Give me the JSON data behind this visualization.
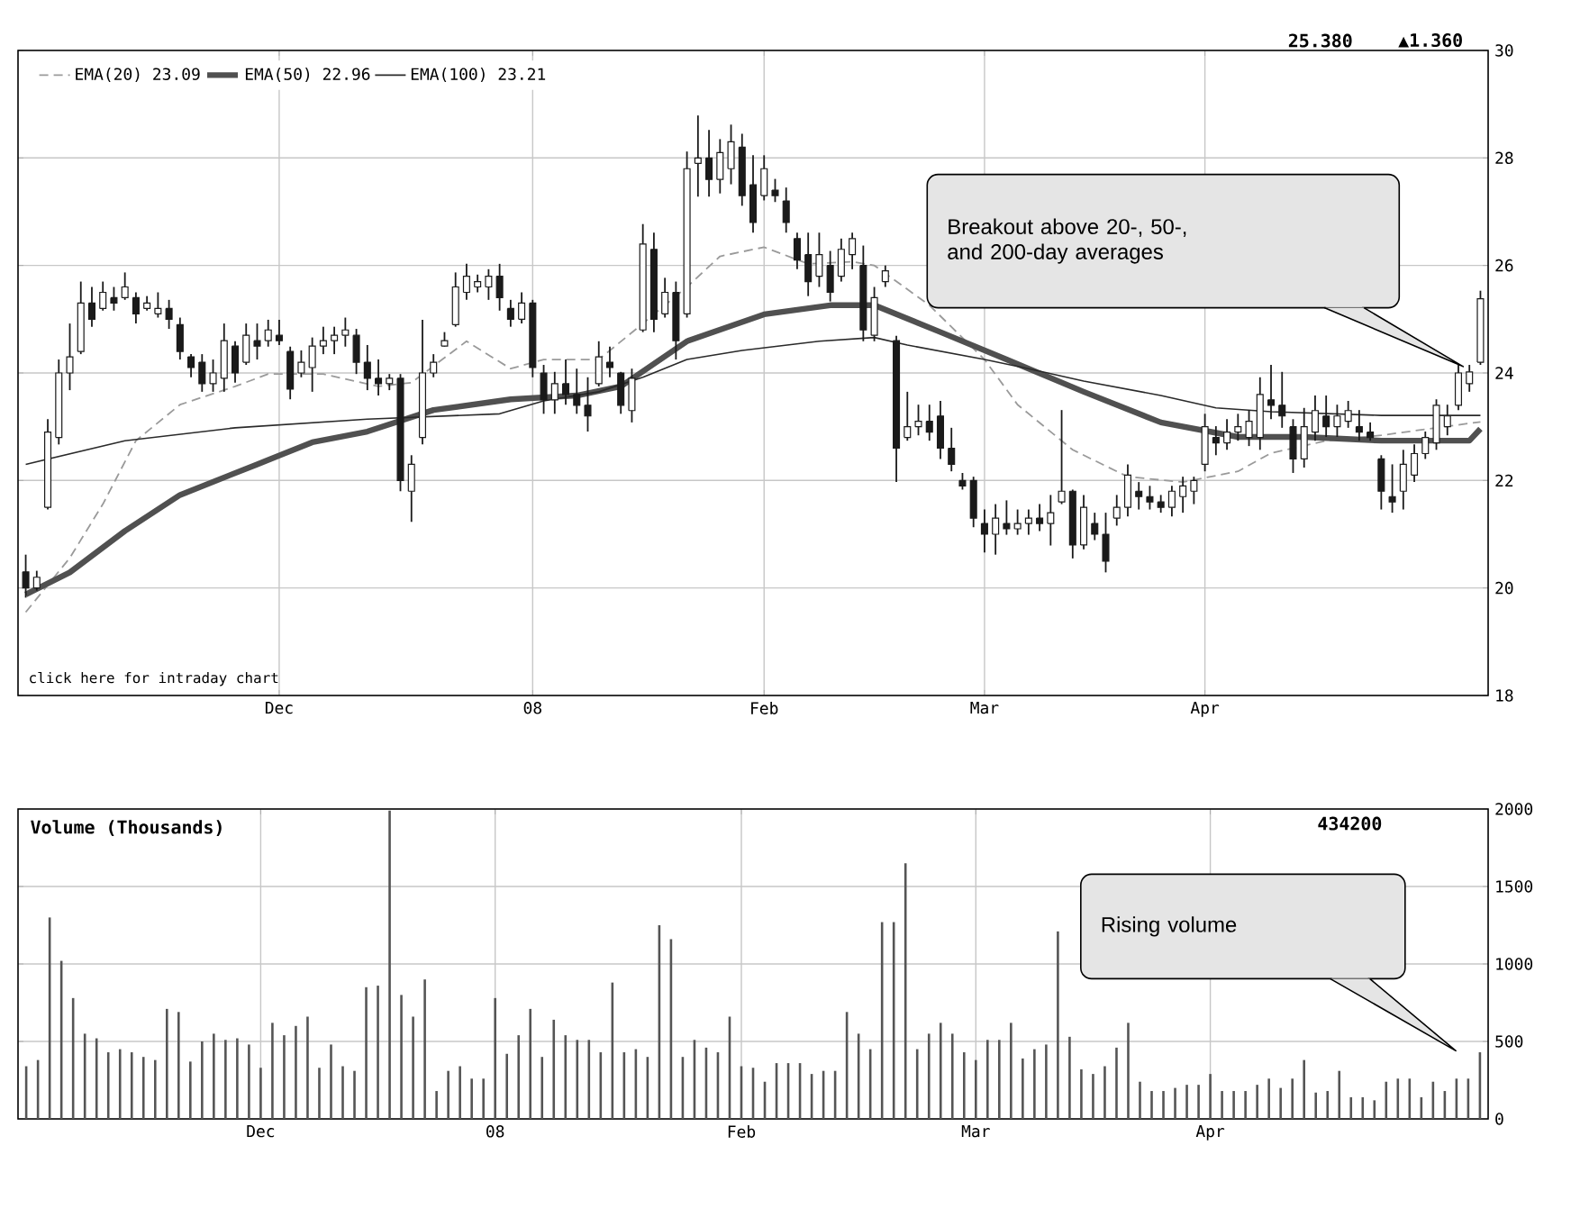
{
  "chart_data": [
    {
      "type": "candlestick",
      "color": "#1a1a1a",
      "grid": true,
      "legend": "top left",
      "ylim": [
        18,
        30
      ],
      "yticks": [
        18,
        20,
        22,
        24,
        26,
        28,
        30
      ],
      "categories": [
        null,
        null,
        null,
        null,
        null,
        null,
        null,
        null,
        null,
        null,
        null,
        null,
        null,
        null,
        null,
        null,
        null,
        null,
        null,
        null,
        null,
        null,
        null,
        "Dec",
        null,
        null,
        null,
        null,
        null,
        null,
        null,
        null,
        null,
        null,
        null,
        null,
        null,
        null,
        null,
        null,
        null,
        null,
        null,
        null,
        null,
        null,
        "08",
        null,
        null,
        null,
        null,
        null,
        null,
        null,
        null,
        null,
        null,
        null,
        null,
        null,
        null,
        null,
        null,
        null,
        null,
        null,
        null,
        "Feb",
        null,
        null,
        null,
        null,
        null,
        null,
        null,
        null,
        null,
        null,
        null,
        null,
        null,
        null,
        null,
        null,
        null,
        null,
        null,
        "Mar",
        null,
        null,
        null,
        null,
        null,
        null,
        null,
        null,
        null,
        null,
        null,
        null,
        null,
        null,
        null,
        null,
        null,
        null,
        null,
        "Apr",
        null,
        null,
        null,
        null,
        null,
        null,
        null,
        null,
        null,
        null,
        null,
        null,
        null,
        null,
        null,
        null,
        null,
        null,
        null,
        null,
        null,
        null,
        null,
        null,
        null
      ],
      "ohlc": [
        [
          20.3,
          20.62,
          19.82,
          20.0
        ],
        [
          20.0,
          20.32,
          19.95,
          20.2
        ],
        [
          21.5,
          23.14,
          21.46,
          22.9
        ],
        [
          22.8,
          24.25,
          22.67,
          24.0
        ],
        [
          24.0,
          24.92,
          23.68,
          24.3
        ],
        [
          24.4,
          25.7,
          24.35,
          25.3
        ],
        [
          25.3,
          25.6,
          24.86,
          25.0
        ],
        [
          25.2,
          25.7,
          25.16,
          25.5
        ],
        [
          25.4,
          25.6,
          25.16,
          25.3
        ],
        [
          25.4,
          25.87,
          25.36,
          25.6
        ],
        [
          25.4,
          25.5,
          24.92,
          25.1
        ],
        [
          25.2,
          25.43,
          25.16,
          25.3
        ],
        [
          25.1,
          25.5,
          25.03,
          25.2
        ],
        [
          25.2,
          25.36,
          24.82,
          25.0
        ],
        [
          24.9,
          25.03,
          24.25,
          24.4
        ],
        [
          24.3,
          24.35,
          23.92,
          24.1
        ],
        [
          24.2,
          24.35,
          23.65,
          23.8
        ],
        [
          23.8,
          24.25,
          23.65,
          24.0
        ],
        [
          23.9,
          24.92,
          23.65,
          24.6
        ],
        [
          24.5,
          24.59,
          23.82,
          24.0
        ],
        [
          24.2,
          24.92,
          24.15,
          24.7
        ],
        [
          24.6,
          24.92,
          24.25,
          24.5
        ],
        [
          24.6,
          24.99,
          24.49,
          24.8
        ],
        [
          24.7,
          24.99,
          24.52,
          24.6
        ],
        [
          24.4,
          24.49,
          23.51,
          23.7
        ],
        [
          24.0,
          24.42,
          23.92,
          24.2
        ],
        [
          24.1,
          24.66,
          23.65,
          24.5
        ],
        [
          24.5,
          24.86,
          24.35,
          24.6
        ],
        [
          24.6,
          24.86,
          24.35,
          24.7
        ],
        [
          24.7,
          25.03,
          24.49,
          24.8
        ],
        [
          24.7,
          24.82,
          23.98,
          24.2
        ],
        [
          24.2,
          24.52,
          23.68,
          23.9
        ],
        [
          23.9,
          24.25,
          23.58,
          23.8
        ],
        [
          23.8,
          23.98,
          23.68,
          23.9
        ],
        [
          23.9,
          23.98,
          21.8,
          22.0
        ],
        [
          21.8,
          22.47,
          21.23,
          22.3
        ],
        [
          22.8,
          24.99,
          22.67,
          24.0
        ],
        [
          24.0,
          24.35,
          23.92,
          24.2
        ],
        [
          24.5,
          24.76,
          24.49,
          24.6
        ],
        [
          24.9,
          25.87,
          24.86,
          25.6
        ],
        [
          25.5,
          26.03,
          25.36,
          25.8
        ],
        [
          25.6,
          25.83,
          25.5,
          25.7
        ],
        [
          25.6,
          25.93,
          25.36,
          25.8
        ],
        [
          25.8,
          26.03,
          25.16,
          25.4
        ],
        [
          25.2,
          25.36,
          24.86,
          25.0
        ],
        [
          25.0,
          25.5,
          24.92,
          25.3
        ],
        [
          25.3,
          25.36,
          23.92,
          24.1
        ],
        [
          24.0,
          24.15,
          23.24,
          23.5
        ],
        [
          23.5,
          24.02,
          23.24,
          23.8
        ],
        [
          23.8,
          24.25,
          23.41,
          23.6
        ],
        [
          23.6,
          24.08,
          23.24,
          23.4
        ],
        [
          23.4,
          23.92,
          22.91,
          23.2
        ],
        [
          23.8,
          24.59,
          23.75,
          24.3
        ],
        [
          24.2,
          24.49,
          23.92,
          24.1
        ],
        [
          24.0,
          24.02,
          23.24,
          23.4
        ],
        [
          23.3,
          24.08,
          23.08,
          23.9
        ],
        [
          24.8,
          26.77,
          24.76,
          26.4
        ],
        [
          26.3,
          26.61,
          24.76,
          25.0
        ],
        [
          25.1,
          25.77,
          25.03,
          25.5
        ],
        [
          25.5,
          25.7,
          24.25,
          24.6
        ],
        [
          25.1,
          28.12,
          25.03,
          27.8
        ],
        [
          27.9,
          28.79,
          27.28,
          28.0
        ],
        [
          28.0,
          28.52,
          27.28,
          27.6
        ],
        [
          27.6,
          28.35,
          27.34,
          28.1
        ],
        [
          27.8,
          28.62,
          27.51,
          28.3
        ],
        [
          28.2,
          28.45,
          27.11,
          27.3
        ],
        [
          27.5,
          28.05,
          26.61,
          26.8
        ],
        [
          27.3,
          28.05,
          27.21,
          27.8
        ],
        [
          27.4,
          27.61,
          27.18,
          27.3
        ],
        [
          27.2,
          27.45,
          26.61,
          26.8
        ],
        [
          26.5,
          26.61,
          25.93,
          26.1
        ],
        [
          26.2,
          26.61,
          25.43,
          25.7
        ],
        [
          25.8,
          26.61,
          25.6,
          26.2
        ],
        [
          26.0,
          26.27,
          25.33,
          25.5
        ],
        [
          25.8,
          26.5,
          25.7,
          26.3
        ],
        [
          26.2,
          26.61,
          25.93,
          26.5
        ],
        [
          26.0,
          26.37,
          24.59,
          24.8
        ],
        [
          24.7,
          25.6,
          24.59,
          25.4
        ],
        [
          25.7,
          26.0,
          25.6,
          25.9
        ],
        [
          24.6,
          24.69,
          21.97,
          22.6
        ],
        [
          22.8,
          23.65,
          22.74,
          23.0
        ],
        [
          23.0,
          23.41,
          22.84,
          23.1
        ],
        [
          23.1,
          23.41,
          22.74,
          22.9
        ],
        [
          23.2,
          23.48,
          22.4,
          22.6
        ],
        [
          22.6,
          22.98,
          22.17,
          22.3
        ],
        [
          22.0,
          22.14,
          21.83,
          21.9
        ],
        [
          22.0,
          22.07,
          21.13,
          21.3
        ],
        [
          21.2,
          21.46,
          20.66,
          21.0
        ],
        [
          21.0,
          21.56,
          20.62,
          21.3
        ],
        [
          21.2,
          21.63,
          20.99,
          21.1
        ],
        [
          21.1,
          21.46,
          20.99,
          21.2
        ],
        [
          21.2,
          21.46,
          20.99,
          21.3
        ],
        [
          21.3,
          21.56,
          21.06,
          21.2
        ],
        [
          21.2,
          21.73,
          20.79,
          21.4
        ],
        [
          21.6,
          23.31,
          21.56,
          21.8
        ],
        [
          21.8,
          21.83,
          20.55,
          20.8
        ],
        [
          20.8,
          21.73,
          20.72,
          21.5
        ],
        [
          21.2,
          21.4,
          20.89,
          21.0
        ],
        [
          21.0,
          21.4,
          20.29,
          20.5
        ],
        [
          21.3,
          21.73,
          21.16,
          21.5
        ],
        [
          21.5,
          22.3,
          21.33,
          22.1
        ],
        [
          21.8,
          21.97,
          21.46,
          21.7
        ],
        [
          21.7,
          21.9,
          21.46,
          21.6
        ],
        [
          21.6,
          21.73,
          21.4,
          21.5
        ],
        [
          21.5,
          21.9,
          21.33,
          21.8
        ],
        [
          21.7,
          22.07,
          21.4,
          21.9
        ],
        [
          21.8,
          22.07,
          21.56,
          22.0
        ],
        [
          22.3,
          23.24,
          22.17,
          23.0
        ],
        [
          22.8,
          23.01,
          22.47,
          22.7
        ],
        [
          22.7,
          23.14,
          22.57,
          22.9
        ],
        [
          22.9,
          23.24,
          22.74,
          23.0
        ],
        [
          22.8,
          23.31,
          22.64,
          23.1
        ],
        [
          22.8,
          23.92,
          22.57,
          23.6
        ],
        [
          23.5,
          24.15,
          23.14,
          23.4
        ],
        [
          23.4,
          24.02,
          22.98,
          23.2
        ],
        [
          23.0,
          23.14,
          22.14,
          22.4
        ],
        [
          22.4,
          23.35,
          22.24,
          23.0
        ],
        [
          22.9,
          23.58,
          22.74,
          23.3
        ],
        [
          23.2,
          23.58,
          22.81,
          23.0
        ],
        [
          23.0,
          23.41,
          22.81,
          23.2
        ],
        [
          23.1,
          23.48,
          22.98,
          23.3
        ],
        [
          23.0,
          23.31,
          22.74,
          22.9
        ],
        [
          22.9,
          23.08,
          22.74,
          22.8
        ],
        [
          22.4,
          22.47,
          21.46,
          21.8
        ],
        [
          21.7,
          22.3,
          21.4,
          21.6
        ],
        [
          21.8,
          22.57,
          21.46,
          22.3
        ],
        [
          22.1,
          22.67,
          21.97,
          22.5
        ],
        [
          22.5,
          22.91,
          22.4,
          22.8
        ],
        [
          22.7,
          23.51,
          22.57,
          23.4
        ],
        [
          23.0,
          23.41,
          22.84,
          23.2
        ],
        [
          23.4,
          24.15,
          23.31,
          24.0
        ],
        [
          23.8,
          24.15,
          23.65,
          24.02
        ],
        [
          24.2,
          25.53,
          24.15,
          25.38
        ]
      ],
      "series": [
        {
          "name": "EMA(20) 23.09",
          "type": "line",
          "color": "#9a9a9a",
          "line_style": "dashed",
          "values": [
            19.55,
            null,
            null,
            null,
            20.56,
            null,
            null,
            21.56,
            null,
            null,
            22.74,
            null,
            null,
            null,
            23.41,
            null,
            null,
            null,
            null,
            23.75,
            null,
            null,
            23.98,
            null,
            null,
            null,
            null,
            23.98,
            null,
            null,
            null,
            null,
            23.75,
            null,
            null,
            23.82,
            null,
            null,
            null,
            null,
            24.59,
            null,
            null,
            null,
            24.08,
            null,
            null,
            24.25,
            null,
            null,
            null,
            null,
            24.25,
            null,
            null,
            null,
            24.92,
            null,
            null,
            null,
            25.6,
            null,
            null,
            26.17,
            null,
            null,
            null,
            26.34,
            null,
            null,
            null,
            26.03,
            null,
            null,
            null,
            26.07,
            null,
            26.0,
            null,
            null,
            null,
            null,
            25.26,
            null,
            null,
            null,
            null,
            24.25,
            null,
            null,
            23.41,
            null,
            null,
            null,
            null,
            22.57,
            null,
            null,
            null,
            null,
            22.07,
            null,
            null,
            null,
            null,
            21.97,
            null,
            null,
            null,
            null,
            22.17,
            null,
            null,
            22.51,
            null,
            null,
            null,
            null,
            22.74,
            null,
            null,
            null,
            null,
            22.84,
            null,
            null,
            null,
            null,
            22.98,
            null,
            null,
            null,
            23.09
          ]
        },
        {
          "name": "EMA(50) 22.96",
          "type": "line",
          "color": "#505050",
          "line_style": "solid",
          "values": [
            19.88,
            null,
            null,
            null,
            20.29,
            null,
            null,
            null,
            null,
            21.06,
            null,
            null,
            null,
            null,
            21.73,
            null,
            null,
            null,
            null,
            null,
            null,
            22.3,
            null,
            null,
            null,
            null,
            22.71,
            null,
            null,
            null,
            null,
            22.91,
            null,
            null,
            null,
            null,
            null,
            23.31,
            null,
            null,
            null,
            null,
            null,
            null,
            23.51,
            null,
            null,
            null,
            null,
            null,
            23.58,
            null,
            null,
            null,
            23.75,
            null,
            null,
            null,
            null,
            null,
            24.59,
            null,
            null,
            null,
            null,
            null,
            null,
            25.09,
            null,
            null,
            null,
            null,
            null,
            25.26,
            null,
            null,
            null,
            25.26,
            null,
            null,
            null,
            null,
            null,
            24.76,
            null,
            null,
            null,
            null,
            null,
            24.25,
            null,
            null,
            null,
            null,
            null,
            null,
            23.65,
            null,
            null,
            null,
            null,
            null,
            null,
            23.08,
            null,
            null,
            null,
            null,
            null,
            null,
            22.81,
            null,
            null,
            null,
            null,
            null,
            22.81,
            null,
            null,
            null,
            null,
            null,
            null,
            22.74,
            null,
            null,
            null,
            null,
            null,
            null,
            null,
            22.74,
            22.96
          ]
        },
        {
          "name": "EMA(100) 23.21",
          "type": "line",
          "color": "#2a2a2a",
          "line_style": "solid",
          "values": [
            22.3,
            null,
            null,
            null,
            null,
            null,
            null,
            null,
            null,
            22.74,
            null,
            null,
            null,
            null,
            null,
            null,
            null,
            null,
            null,
            22.98,
            null,
            null,
            null,
            null,
            null,
            null,
            null,
            null,
            null,
            null,
            null,
            23.14,
            null,
            null,
            null,
            null,
            null,
            null,
            null,
            null,
            null,
            null,
            null,
            23.24,
            null,
            null,
            null,
            23.48,
            null,
            null,
            null,
            null,
            23.65,
            null,
            null,
            null,
            23.92,
            null,
            null,
            null,
            24.25,
            null,
            null,
            null,
            null,
            24.42,
            null,
            null,
            null,
            null,
            null,
            null,
            24.59,
            null,
            null,
            null,
            null,
            24.66,
            null,
            null,
            24.52,
            null,
            null,
            null,
            null,
            null,
            null,
            24.25,
            null,
            null,
            null,
            24.08,
            null,
            null,
            null,
            null,
            23.85,
            null,
            null,
            null,
            null,
            null,
            null,
            23.58,
            null,
            null,
            null,
            null,
            23.35,
            null,
            null,
            null,
            null,
            23.28,
            null,
            null,
            null,
            null,
            null,
            null,
            null,
            null,
            null,
            23.21,
            null,
            null,
            null,
            null,
            null,
            null,
            null,
            null,
            23.21
          ]
        }
      ],
      "annotations": [
        "25.380",
        "▲1.360",
        "click here for intraday chart",
        "Breakout above 20-, 50-,\nand 200-day averages"
      ]
    },
    {
      "type": "bar",
      "title": "Volume (Thousands)",
      "color": "#555555",
      "grid": true,
      "ylim": [
        0,
        2000
      ],
      "yticks": [
        0,
        500,
        1000,
        1500,
        2000
      ],
      "categories": [
        null,
        null,
        null,
        null,
        null,
        null,
        null,
        null,
        null,
        null,
        null,
        null,
        null,
        null,
        null,
        null,
        null,
        null,
        null,
        null,
        "Dec",
        null,
        null,
        null,
        null,
        null,
        null,
        null,
        null,
        null,
        null,
        null,
        null,
        null,
        null,
        null,
        null,
        null,
        null,
        null,
        "08",
        null,
        null,
        null,
        null,
        null,
        null,
        null,
        null,
        null,
        null,
        null,
        null,
        null,
        null,
        null,
        null,
        null,
        null,
        null,
        null,
        "Feb",
        null,
        null,
        null,
        null,
        null,
        null,
        null,
        null,
        null,
        null,
        null,
        null,
        null,
        null,
        null,
        null,
        null,
        null,
        null,
        "Mar",
        null,
        null,
        null,
        null,
        null,
        null,
        null,
        null,
        null,
        null,
        null,
        null,
        null,
        null,
        null,
        null,
        null,
        null,
        null,
        "Apr",
        null,
        null,
        null,
        null,
        null,
        null,
        null,
        null,
        null,
        null,
        null,
        null,
        null,
        null,
        null,
        null,
        null,
        null,
        null,
        null,
        null,
        null,
        null
      ],
      "values": [
        340,
        380,
        1300,
        1020,
        780,
        550,
        520,
        430,
        450,
        430,
        400,
        380,
        710,
        690,
        370,
        500,
        550,
        510,
        520,
        480,
        330,
        620,
        540,
        600,
        660,
        330,
        480,
        340,
        310,
        850,
        860,
        1990,
        800,
        660,
        900,
        180,
        310,
        340,
        260,
        260,
        780,
        420,
        540,
        710,
        400,
        640,
        540,
        510,
        510,
        430,
        880,
        430,
        450,
        400,
        1250,
        1160,
        400,
        510,
        460,
        430,
        660,
        340,
        330,
        240,
        360,
        360,
        360,
        290,
        310,
        310,
        690,
        550,
        450,
        1270,
        1270,
        1650,
        450,
        550,
        620,
        550,
        430,
        380,
        510,
        510,
        620,
        390,
        450,
        480,
        1210,
        530,
        320,
        290,
        340,
        460,
        620,
        240,
        180,
        180,
        200,
        220,
        220,
        290,
        180,
        180,
        180,
        220,
        260,
        200,
        260,
        380,
        170,
        180,
        310,
        140,
        140,
        120,
        240,
        260,
        260,
        140,
        240,
        180,
        260,
        260,
        430
      ],
      "annotations": [
        "434200",
        "Rising volume"
      ]
    }
  ]
}
